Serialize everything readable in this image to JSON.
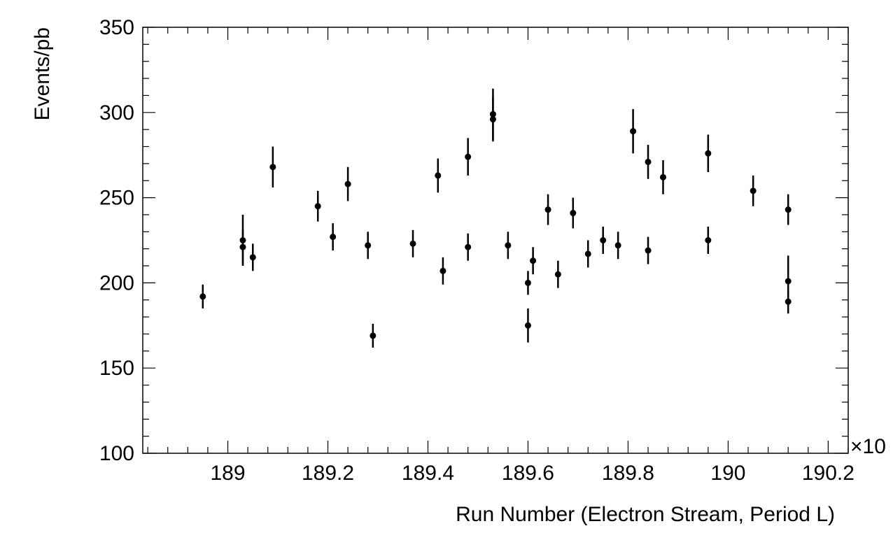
{
  "chart_data": {
    "type": "scatter",
    "title": "",
    "xlabel": "Run Number (Electron Stream, Period L)",
    "ylabel": "Events/pb",
    "x_multiplier_label": "×10",
    "xlim": [
      188.83,
      190.24
    ],
    "ylim": [
      100,
      350
    ],
    "x_ticks": [
      189,
      189.2,
      189.4,
      189.6,
      189.8,
      190,
      190.2
    ],
    "x_tick_labels": [
      "189",
      "189.2",
      "189.4",
      "189.6",
      "189.8",
      "190",
      "190.2"
    ],
    "y_ticks": [
      100,
      150,
      200,
      250,
      300,
      350
    ],
    "y_tick_labels": [
      "100",
      "150",
      "200",
      "250",
      "300",
      "350"
    ],
    "grid": false,
    "marker_color": "#000000",
    "series": [
      {
        "points": [
          {
            "x": 188.95,
            "y": 192,
            "err": 7
          },
          {
            "x": 189.03,
            "y": 225,
            "err": 15
          },
          {
            "x": 189.03,
            "y": 221,
            "err": 10
          },
          {
            "x": 189.05,
            "y": 215,
            "err": 8
          },
          {
            "x": 189.09,
            "y": 268,
            "err": 12
          },
          {
            "x": 189.18,
            "y": 245,
            "err": 9
          },
          {
            "x": 189.21,
            "y": 227,
            "err": 8
          },
          {
            "x": 189.24,
            "y": 258,
            "err": 10
          },
          {
            "x": 189.28,
            "y": 222,
            "err": 8
          },
          {
            "x": 189.29,
            "y": 169,
            "err": 7
          },
          {
            "x": 189.37,
            "y": 223,
            "err": 8
          },
          {
            "x": 189.42,
            "y": 263,
            "err": 10
          },
          {
            "x": 189.43,
            "y": 207,
            "err": 8
          },
          {
            "x": 189.48,
            "y": 274,
            "err": 11
          },
          {
            "x": 189.48,
            "y": 221,
            "err": 8
          },
          {
            "x": 189.53,
            "y": 299,
            "err": 15
          },
          {
            "x": 189.53,
            "y": 296,
            "err": 13
          },
          {
            "x": 189.56,
            "y": 222,
            "err": 8
          },
          {
            "x": 189.6,
            "y": 200,
            "err": 7
          },
          {
            "x": 189.6,
            "y": 175,
            "err": 10
          },
          {
            "x": 189.61,
            "y": 213,
            "err": 8
          },
          {
            "x": 189.64,
            "y": 243,
            "err": 9
          },
          {
            "x": 189.66,
            "y": 205,
            "err": 8
          },
          {
            "x": 189.69,
            "y": 241,
            "err": 9
          },
          {
            "x": 189.72,
            "y": 217,
            "err": 8
          },
          {
            "x": 189.75,
            "y": 225,
            "err": 8
          },
          {
            "x": 189.78,
            "y": 222,
            "err": 8
          },
          {
            "x": 189.81,
            "y": 289,
            "err": 13
          },
          {
            "x": 189.84,
            "y": 271,
            "err": 10
          },
          {
            "x": 189.84,
            "y": 219,
            "err": 8
          },
          {
            "x": 189.87,
            "y": 262,
            "err": 10
          },
          {
            "x": 189.96,
            "y": 276,
            "err": 11
          },
          {
            "x": 189.96,
            "y": 225,
            "err": 8
          },
          {
            "x": 190.05,
            "y": 254,
            "err": 9
          },
          {
            "x": 190.12,
            "y": 243,
            "err": 9
          },
          {
            "x": 190.12,
            "y": 201,
            "err": 15
          },
          {
            "x": 190.12,
            "y": 189,
            "err": 7
          }
        ]
      }
    ]
  }
}
